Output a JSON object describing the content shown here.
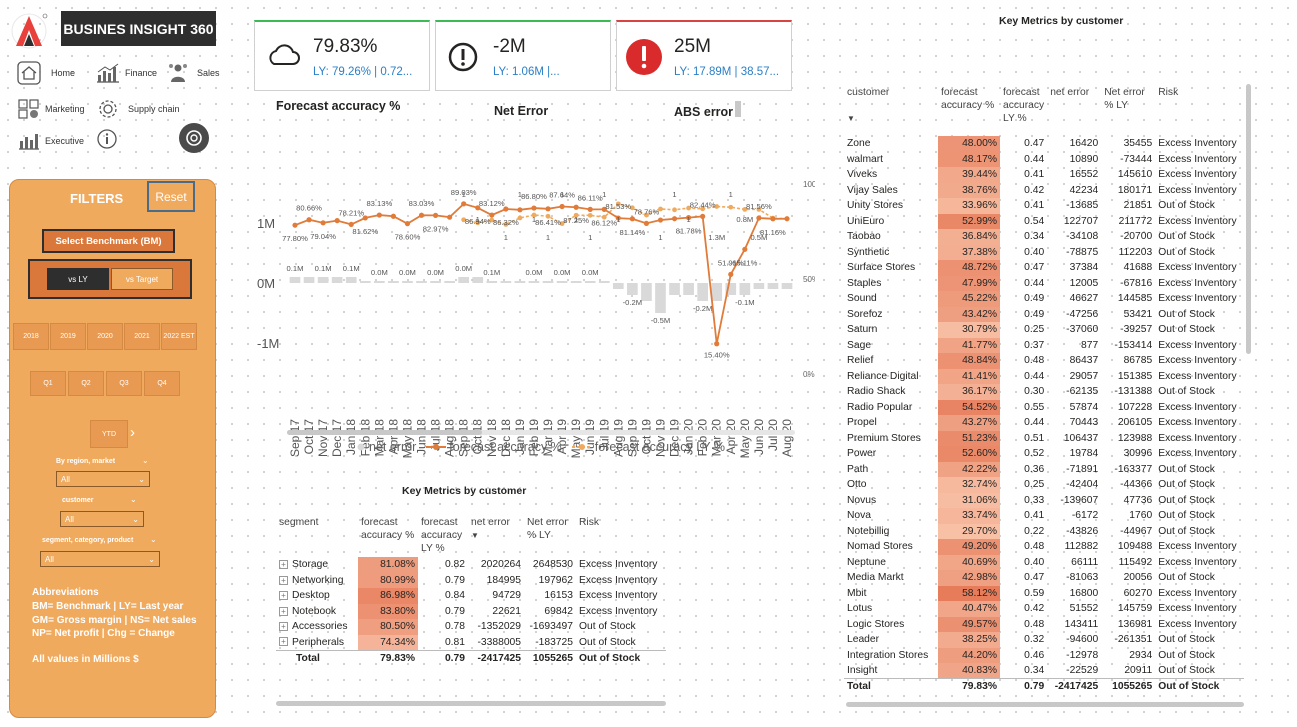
{
  "app": {
    "title": "BUSINES INSIGHT 360"
  },
  "nav": {
    "home": "Home",
    "finance": "Finance",
    "sales": "Sales",
    "marketing": "Marketing",
    "supply_chain": "Supply chain",
    "executive": "Executive"
  },
  "filters": {
    "title": "FILTERS",
    "reset": "Reset",
    "benchmark_label": "Select Benchmark (BM)",
    "vs_ly": "vs LY",
    "vs_target": "vs Target",
    "years": [
      "2018",
      "2019",
      "2020",
      "2021",
      "2022 EST"
    ],
    "quarters": [
      "Q1",
      "Q2",
      "Q3",
      "Q4"
    ],
    "ytd": "YTD",
    "region_label": "By region, market",
    "region_value": "All",
    "customer_label": "customer",
    "customer_value": "All",
    "segment_label": "segment, category, product",
    "segment_value": "All"
  },
  "abbreviations": {
    "title": "Abbreviations",
    "line1": "BM= Benchmark | LY= Last year",
    "line2": "GM= Gross margin | NS= Net sales",
    "line3": "NP= Net profit | Chg = Change",
    "line4": "All values in Millions $"
  },
  "kpis": [
    {
      "value": "79.83%",
      "sub": "LY: 79.26% | 0.72...",
      "label": "Forecast accuracy %",
      "icon": "cloud-icon",
      "accent": "#3cba54"
    },
    {
      "value": "-2M",
      "sub": "LY: 1.06M |...",
      "label": "Net Error",
      "icon": "exclamation-circle-icon",
      "accent": "#3cba54"
    },
    {
      "value": "25M",
      "sub": "LY: 17.89M | 38.57...",
      "label": "ABS error",
      "icon": "alert-icon",
      "accent": "#d64541"
    }
  ],
  "chart_data": {
    "type": "line",
    "categories": [
      "Sep 17",
      "Oct 17",
      "Nov 17",
      "Dec 17",
      "Jan 18",
      "Feb 18",
      "Mar 18",
      "Apr 18",
      "May 18",
      "Jun 18",
      "Jul 18",
      "Aug 18",
      "Sep 18",
      "Oct 18",
      "Nov 18",
      "Dec 18",
      "Jan 19",
      "Feb 19",
      "Mar 19",
      "Apr 19",
      "May 19",
      "Jun 19",
      "Jul 19",
      "Aug 19",
      "Sep 19",
      "Oct 19",
      "Nov 19",
      "Dec 19",
      "Jan 20",
      "Feb 20",
      "Mar 20",
      "Apr 20",
      "May 20",
      "Jun 20",
      "Jul 20",
      "Aug 20"
    ],
    "series": [
      {
        "name": "net error",
        "type": "bar",
        "color": "#d9d9d9",
        "values": [
          0.1,
          0.1,
          0.1,
          0.1,
          0.1,
          0.0,
          0.0,
          0.0,
          0.0,
          0.0,
          0.0,
          0.0,
          0.1,
          0.1,
          0.0,
          0.0,
          0.0,
          0.0,
          0.0,
          0.0,
          0.0,
          0.0,
          0.0,
          -0.1,
          -0.2,
          -0.3,
          -0.5,
          -0.2,
          -0.2,
          -0.3,
          -0.3,
          -0.2,
          -0.2,
          -0.1,
          -0.1,
          -0.1
        ]
      },
      {
        "name": "forecast accuracy %",
        "type": "line",
        "color": "#e07b39",
        "values": [
          77.8,
          80.66,
          79.04,
          80.2,
          78.21,
          81.62,
          83.13,
          82.5,
          78.6,
          83.03,
          82.97,
          82.0,
          89.03,
          86.94,
          83.12,
          86.32,
          85.9,
          86.8,
          86.41,
          87.64,
          87.25,
          86.11,
          86.12,
          81.53,
          81.14,
          78.76,
          80.5,
          81.2,
          81.78,
          82.44,
          15.4,
          51.91,
          65.11,
          81.56,
          81.16,
          81.2
        ]
      },
      {
        "name": "forecast accuracy LY %",
        "type": "line",
        "color": "#f0aa5e",
        "values": [
          null,
          null,
          null,
          null,
          null,
          null,
          null,
          null,
          null,
          null,
          null,
          null,
          80.66,
          79.04,
          80.5,
          78.21,
          81.62,
          83.13,
          82.5,
          78.6,
          83.03,
          82.97,
          82.0,
          89.03,
          86.94,
          83.12,
          86.32,
          85.9,
          86.8,
          86.41,
          87.64,
          87.25,
          86.11,
          86.12,
          81.53,
          81.14
        ]
      }
    ],
    "left_axis": [
      "1M",
      "0M",
      "-1M"
    ],
    "right_axis": [
      "100%",
      "50%",
      "0%"
    ],
    "accuracy_labels": [
      "77.80%",
      "80.66%",
      "79.04%",
      "78.21%",
      "81.62%",
      "83.13%",
      "78.60%",
      "83.03%",
      "82.97%",
      "89.03%",
      "86.94%",
      "83.12%",
      "86.32%",
      "86.80%",
      "86.41%",
      "87.64%",
      "87.25%",
      "86.11%",
      "86.12%",
      "81.53%",
      "81.14%",
      "78.76%",
      "81.78%",
      "82.44%",
      "15.40%",
      "51.91%",
      "65.11%",
      "81.56%",
      "81.16%"
    ],
    "error_labels": [
      "0.1M",
      "0.1M",
      "0.1M",
      "0.0M",
      "0.0M",
      "0.0M",
      "0.0M",
      "0.1M",
      "0.0M",
      "0.0M",
      "0.0M",
      "-0.2M",
      "-0.5M",
      "-0.2M",
      "-0.1M"
    ],
    "top_labels": [
      "1",
      "1",
      "1",
      "1",
      "1",
      "1",
      "1",
      "1",
      "1",
      "1",
      "1",
      "1",
      "1",
      "1",
      "1.3M",
      "1",
      "0.8M",
      "0.5M"
    ]
  },
  "legend": [
    "net error",
    "forecast accuracy %",
    "forecast accuracy LY %"
  ],
  "segment_table": {
    "title": "Key Metrics by customer",
    "headers": [
      "segment",
      "forecast accuracy %",
      "forecast accuracy LY %",
      "net error",
      "Net error % LY",
      "Risk"
    ],
    "rows": [
      [
        "Storage",
        "81.08%",
        "0.82",
        "2020264",
        "2648530",
        "Excess Inventory"
      ],
      [
        "Networking",
        "80.99%",
        "0.79",
        "184995",
        "197962",
        "Excess Inventory"
      ],
      [
        "Desktop",
        "86.98%",
        "0.84",
        "94729",
        "16153",
        "Excess Inventory"
      ],
      [
        "Notebook",
        "83.80%",
        "0.79",
        "22621",
        "69842",
        "Excess Inventory"
      ],
      [
        "Accessories",
        "80.50%",
        "0.78",
        "-1352029",
        "-1693497",
        "Out of Stock"
      ],
      [
        "Peripherals",
        "74.34%",
        "0.81",
        "-3388005",
        "-183725",
        "Out of Stock"
      ]
    ],
    "total": [
      "Total",
      "79.83%",
      "0.79",
      "-2417425",
      "1055265",
      "Out of Stock"
    ]
  },
  "customer_table": {
    "title": "Key Metrics by customer",
    "headers": [
      "customer",
      "forecast accuracy %",
      "forecast accuracy LY %",
      "net error",
      "Net error % LY",
      "Risk"
    ],
    "rows": [
      [
        "Zone",
        "48.00%",
        "0.47",
        "16420",
        "35455",
        "Excess Inventory"
      ],
      [
        "walmart",
        "48.17%",
        "0.44",
        "10890",
        "-73444",
        "Excess Inventory"
      ],
      [
        "Viveks",
        "39.44%",
        "0.41",
        "16552",
        "145610",
        "Excess Inventory"
      ],
      [
        "Vijay Sales",
        "38.76%",
        "0.42",
        "42234",
        "180171",
        "Excess Inventory"
      ],
      [
        "Unity Stores",
        "33.96%",
        "0.41",
        "-13685",
        "21851",
        "Out of Stock"
      ],
      [
        "UniEuro",
        "52.99%",
        "0.54",
        "122707",
        "211772",
        "Excess Inventory"
      ],
      [
        "Taobao",
        "36.84%",
        "0.34",
        "-34108",
        "-20700",
        "Out of Stock"
      ],
      [
        "Synthetic",
        "37.38%",
        "0.40",
        "-78875",
        "112203",
        "Out of Stock"
      ],
      [
        "Surface Stores",
        "48.72%",
        "0.47",
        "37384",
        "41688",
        "Excess Inventory"
      ],
      [
        "Staples",
        "47.99%",
        "0.44",
        "12005",
        "-67816",
        "Excess Inventory"
      ],
      [
        "Sound",
        "45.22%",
        "0.49",
        "46627",
        "144585",
        "Excess Inventory"
      ],
      [
        "Sorefoz",
        "43.42%",
        "0.49",
        "-47256",
        "53421",
        "Out of Stock"
      ],
      [
        "Saturn",
        "30.79%",
        "0.25",
        "-37060",
        "-39257",
        "Out of Stock"
      ],
      [
        "Sage",
        "41.77%",
        "0.37",
        "877",
        "-153414",
        "Excess Inventory"
      ],
      [
        "Relief",
        "48.84%",
        "0.48",
        "86437",
        "86785",
        "Excess Inventory"
      ],
      [
        "Reliance Digital",
        "41.41%",
        "0.44",
        "29057",
        "151385",
        "Excess Inventory"
      ],
      [
        "Radio Shack",
        "36.17%",
        "0.30",
        "-62135",
        "-131388",
        "Out of Stock"
      ],
      [
        "Radio Popular",
        "54.52%",
        "0.55",
        "57874",
        "107228",
        "Excess Inventory"
      ],
      [
        "Propel",
        "43.27%",
        "0.44",
        "70443",
        "206105",
        "Excess Inventory"
      ],
      [
        "Premium Stores",
        "51.23%",
        "0.51",
        "106437",
        "123988",
        "Excess Inventory"
      ],
      [
        "Power",
        "52.60%",
        "0.52",
        "19784",
        "30996",
        "Excess Inventory"
      ],
      [
        "Path",
        "42.22%",
        "0.36",
        "-71891",
        "-163377",
        "Out of Stock"
      ],
      [
        "Otto",
        "32.74%",
        "0.25",
        "-42404",
        "-44366",
        "Out of Stock"
      ],
      [
        "Novus",
        "31.06%",
        "0.33",
        "-139607",
        "47736",
        "Out of Stock"
      ],
      [
        "Nova",
        "33.74%",
        "0.41",
        "-6172",
        "1760",
        "Out of Stock"
      ],
      [
        "Notebillig",
        "29.70%",
        "0.22",
        "-43826",
        "-44967",
        "Out of Stock"
      ],
      [
        "Nomad Stores",
        "49.20%",
        "0.48",
        "112882",
        "109488",
        "Excess Inventory"
      ],
      [
        "Neptune",
        "40.69%",
        "0.40",
        "66111",
        "115492",
        "Excess Inventory"
      ],
      [
        "Media Markt",
        "42.98%",
        "0.47",
        "-81063",
        "20056",
        "Out of Stock"
      ],
      [
        "Mbit",
        "58.12%",
        "0.59",
        "16800",
        "60270",
        "Excess Inventory"
      ],
      [
        "Lotus",
        "40.47%",
        "0.42",
        "51552",
        "145759",
        "Excess Inventory"
      ],
      [
        "Logic Stores",
        "49.57%",
        "0.48",
        "143411",
        "136981",
        "Excess Inventory"
      ],
      [
        "Leader",
        "38.25%",
        "0.32",
        "-94600",
        "-261351",
        "Out of Stock"
      ],
      [
        "Integration Stores",
        "44.20%",
        "0.46",
        "-12978",
        "2934",
        "Out of Stock"
      ],
      [
        "Insight",
        "40.83%",
        "0.34",
        "-22529",
        "20911",
        "Out of Stock"
      ]
    ],
    "total": [
      "Total",
      "79.83%",
      "0.79",
      "-2417425",
      "1055265",
      "Out of Stock"
    ]
  }
}
